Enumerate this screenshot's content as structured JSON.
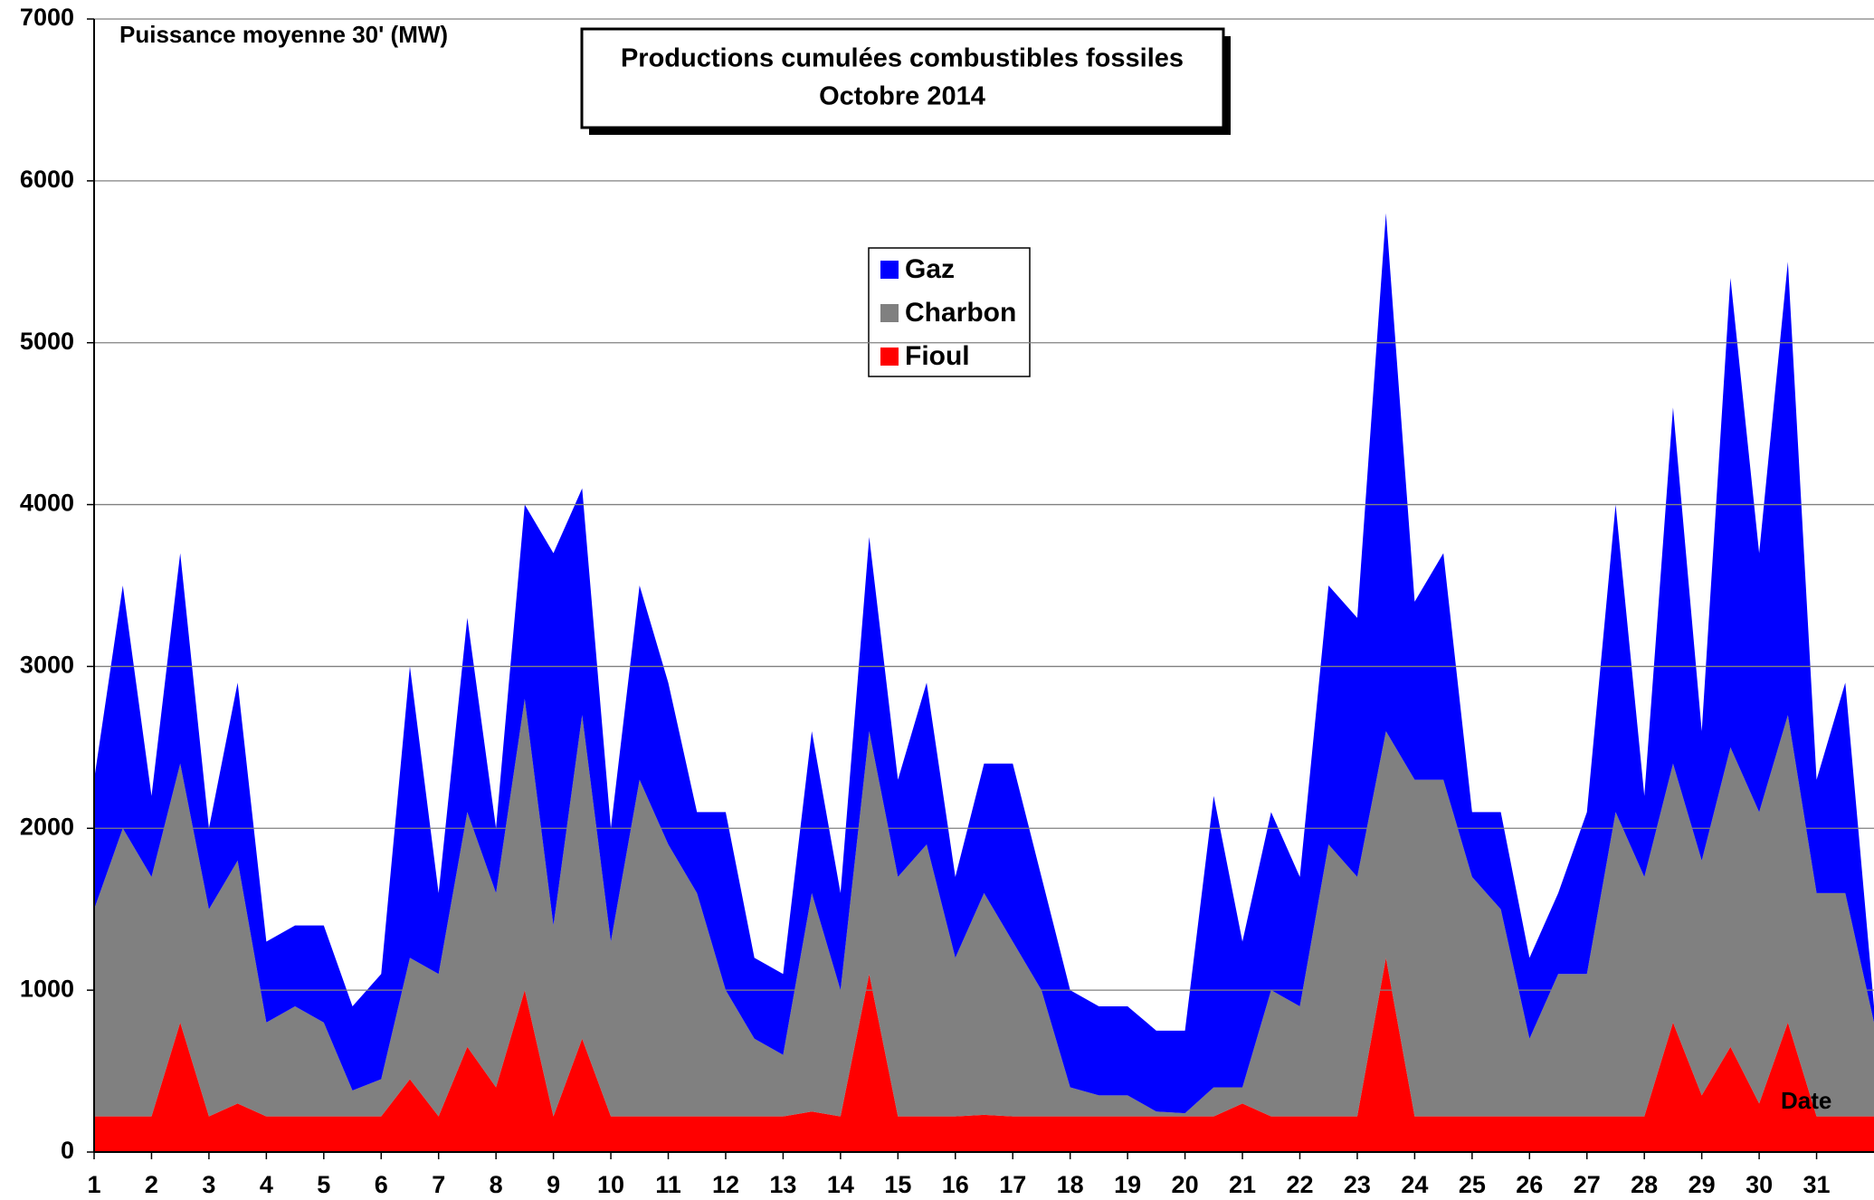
{
  "chart_data": {
    "type": "stacked_area",
    "title": "Productions cumulées combustibles fossiles",
    "subtitle": "Octobre 2014",
    "y_label": "Puissance moyenne 30' (MW)",
    "x_label": "Date",
    "x": [
      1,
      1.5,
      2,
      2.5,
      3,
      3.5,
      4,
      4.5,
      5,
      5.5,
      6,
      6.5,
      7,
      7.5,
      8,
      8.5,
      9,
      9.5,
      10,
      10.5,
      11,
      11.5,
      12,
      12.5,
      13,
      13.5,
      14,
      14.5,
      15,
      15.5,
      16,
      16.5,
      17,
      17.5,
      18,
      18.5,
      19,
      19.5,
      20,
      20.5,
      21,
      21.5,
      22,
      22.5,
      23,
      23.5,
      24,
      24.5,
      25,
      25.5,
      26,
      26.5,
      27,
      27.5,
      28,
      28.5,
      29,
      29.5,
      30,
      30.5,
      31,
      31.5,
      32
    ],
    "series": [
      {
        "name": "Gaz",
        "color": "#0000ff",
        "values": [
          800,
          1500,
          500,
          1300,
          500,
          1100,
          500,
          500,
          600,
          520,
          650,
          1800,
          500,
          1200,
          400,
          1200,
          2300,
          1400,
          700,
          1200,
          1000,
          500,
          1100,
          500,
          500,
          1000,
          600,
          1200,
          600,
          1000,
          500,
          800,
          1100,
          700,
          600,
          550,
          550,
          500,
          510,
          1800,
          900,
          1100,
          800,
          1600,
          1600,
          3200,
          1100,
          1400,
          400,
          600,
          500,
          500,
          1000,
          1900,
          500,
          2200,
          800,
          2900,
          1600,
          2800,
          700,
          1300,
          100
        ]
      },
      {
        "name": "Charbon",
        "color": "#808080",
        "values": [
          1280,
          1780,
          1480,
          1600,
          1280,
          1500,
          580,
          680,
          580,
          160,
          230,
          750,
          880,
          1450,
          1200,
          1800,
          1180,
          2000,
          1080,
          2080,
          1680,
          1380,
          780,
          480,
          380,
          1350,
          780,
          1500,
          1480,
          1680,
          980,
          1370,
          1080,
          780,
          180,
          130,
          130,
          30,
          20,
          180,
          100,
          780,
          680,
          1680,
          1480,
          1400,
          2080,
          2080,
          1480,
          1280,
          480,
          880,
          880,
          1880,
          1480,
          1600,
          1450,
          1850,
          1800,
          1900,
          1380,
          1380,
          580
        ]
      },
      {
        "name": "Fioul",
        "color": "#ff0000",
        "values": [
          220,
          220,
          220,
          800,
          220,
          300,
          220,
          220,
          220,
          220,
          220,
          450,
          220,
          650,
          400,
          1000,
          220,
          700,
          220,
          220,
          220,
          220,
          220,
          220,
          220,
          250,
          220,
          1100,
          220,
          220,
          220,
          230,
          220,
          220,
          220,
          220,
          220,
          220,
          220,
          220,
          300,
          220,
          220,
          220,
          220,
          1200,
          220,
          220,
          220,
          220,
          220,
          220,
          220,
          220,
          220,
          800,
          350,
          650,
          300,
          800,
          220,
          220,
          220
        ]
      }
    ],
    "xlim": [
      1,
      32
    ],
    "xticks": [
      1,
      2,
      3,
      4,
      5,
      6,
      7,
      8,
      9,
      10,
      11,
      12,
      13,
      14,
      15,
      16,
      17,
      18,
      19,
      20,
      21,
      22,
      23,
      24,
      25,
      26,
      27,
      28,
      29,
      30,
      31
    ],
    "ylim": [
      0,
      7000
    ],
    "yticks": [
      0,
      1000,
      2000,
      3000,
      4000,
      5000,
      6000,
      7000
    ],
    "grid": true
  }
}
